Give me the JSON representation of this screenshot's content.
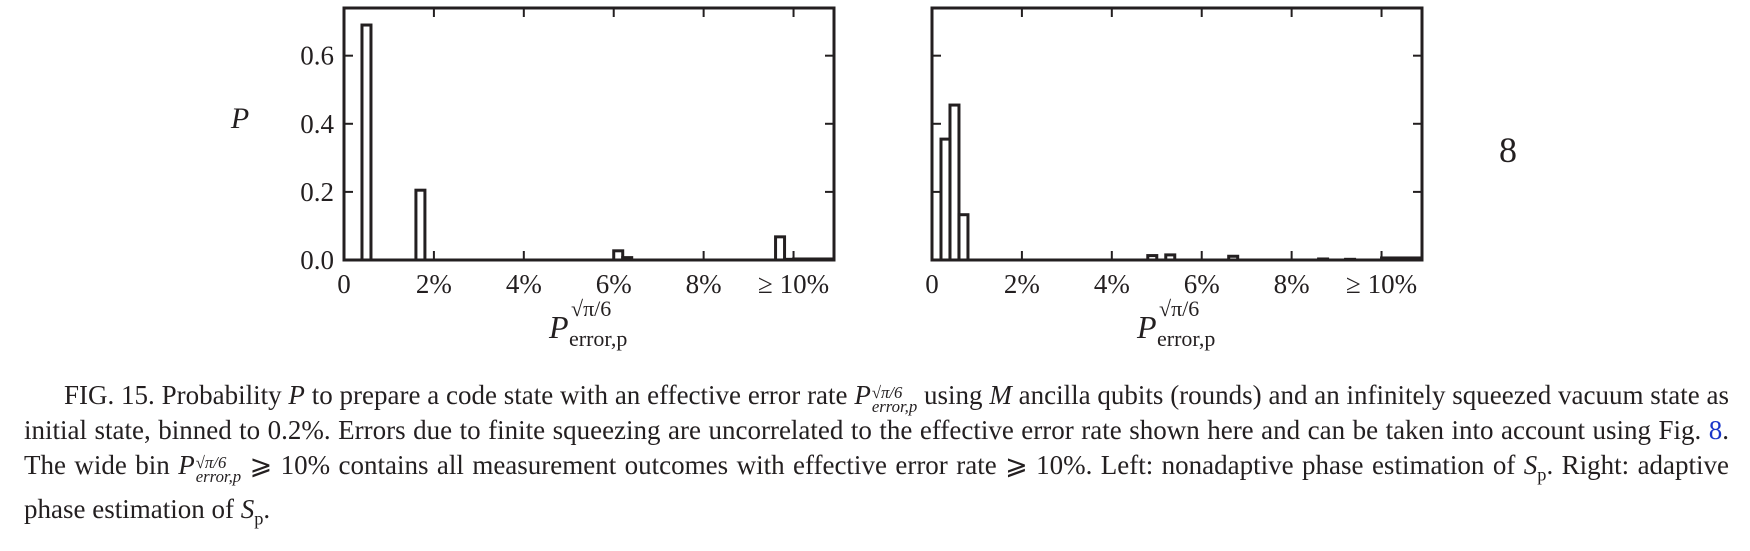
{
  "chart_data": [
    {
      "type": "bar",
      "panel": "left",
      "ylabel": "P",
      "xlabel": "P_error,p^{√π/6}",
      "xlabel_base": "P",
      "xlabel_sup": "√π/6",
      "xlabel_sub": "error,p",
      "x_ticks": [
        "0",
        "2%",
        "4%",
        "6%",
        "8%",
        "≥ 10%"
      ],
      "y_ticks": [
        "0.0",
        "0.2",
        "0.4",
        "0.6"
      ],
      "ylim": [
        0,
        0.74
      ],
      "xlim": [
        0,
        10.9
      ],
      "bin_width": 0.2,
      "bins": [
        {
          "x": 0.4,
          "value": 0.69
        },
        {
          "x": 1.6,
          "value": 0.205
        },
        {
          "x": 6.0,
          "value": 0.027
        },
        {
          "x": 6.2,
          "value": 0.007
        },
        {
          "x": 9.6,
          "value": 0.068
        },
        {
          "x": 9.8,
          "value": 0.002
        },
        {
          "x": 10.0,
          "value": 0.003,
          "width": 0.9
        }
      ]
    },
    {
      "type": "bar",
      "panel": "right",
      "ylabel": "",
      "xlabel": "P_error,p^{√π/6}",
      "xlabel_base": "P",
      "xlabel_sup": "√π/6",
      "xlabel_sub": "error,p",
      "x_ticks": [
        "0",
        "2%",
        "4%",
        "6%",
        "8%",
        "≥ 10%"
      ],
      "y_ticks": [],
      "ylim": [
        0,
        0.74
      ],
      "xlim": [
        0,
        10.9
      ],
      "bin_width": 0.2,
      "bins": [
        {
          "x": 0.2,
          "value": 0.355
        },
        {
          "x": 0.4,
          "value": 0.455
        },
        {
          "x": 0.6,
          "value": 0.133
        },
        {
          "x": 4.8,
          "value": 0.013
        },
        {
          "x": 5.2,
          "value": 0.015
        },
        {
          "x": 6.6,
          "value": 0.011
        },
        {
          "x": 8.6,
          "value": 0.003
        },
        {
          "x": 9.2,
          "value": 0.002
        },
        {
          "x": 10.0,
          "value": 0.006,
          "width": 0.9
        }
      ]
    }
  ],
  "side_label": "8",
  "caption": {
    "label": "FIG. 15.",
    "p1": "Probability",
    "sym_P": "P",
    "p2": "to prepare a code state with an effective error rate",
    "perr_base": "P",
    "perr_sup": "√π/6",
    "perr_sub": "error,p",
    "p3": "using",
    "sym_M": "M",
    "p4": "ancilla qubits (rounds) and an infinitely squeezed vacuum state as initial state, binned to 0.2%. Errors due to finite squeezing are uncorrelated to the effective error rate shown here and can be taken into account using Fig.",
    "fig_ref": "8",
    "p5": ". The wide bin",
    "p6": "⩾ 10% contains all measurement outcomes with effective error rate ⩾ 10%. Left: nonadaptive phase estimation of",
    "sym_S": "S",
    "sym_p": "p",
    "p7": ". Right: adaptive phase estimation of",
    "p8": "."
  }
}
